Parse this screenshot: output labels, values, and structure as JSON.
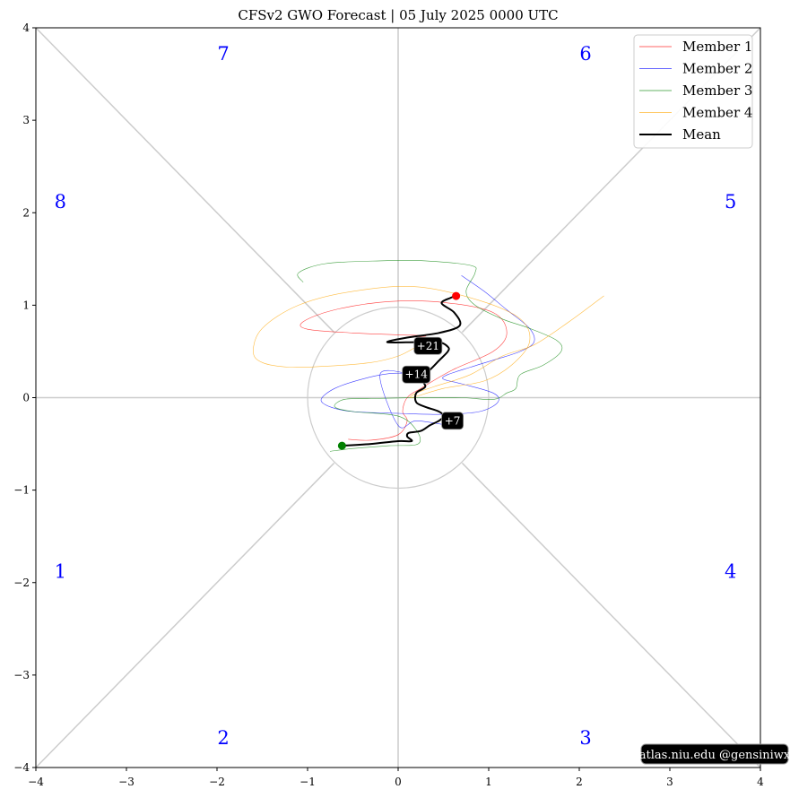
{
  "chart_data": {
    "type": "line",
    "title": "CFSv2 GWO Forecast   |   05  July  2025 0000 UTC",
    "xlim": [
      -4,
      4
    ],
    "ylim": [
      -4,
      4
    ],
    "x_ticks": [
      {
        "value": -4,
        "label": "−4"
      },
      {
        "value": -3,
        "label": "−3"
      },
      {
        "value": -2,
        "label": "−2"
      },
      {
        "value": -1,
        "label": "−1"
      },
      {
        "value": 0,
        "label": "0"
      },
      {
        "value": 1,
        "label": "1"
      },
      {
        "value": 2,
        "label": "2"
      },
      {
        "value": 3,
        "label": "3"
      },
      {
        "value": 4,
        "label": "4"
      }
    ],
    "y_ticks": [
      {
        "value": -4,
        "label": "−4"
      },
      {
        "value": -3,
        "label": "−3"
      },
      {
        "value": -2,
        "label": "−2"
      },
      {
        "value": -1,
        "label": "−1"
      },
      {
        "value": 0,
        "label": "0"
      },
      {
        "value": 1,
        "label": "1"
      },
      {
        "value": 2,
        "label": "2"
      },
      {
        "value": 3,
        "label": "3"
      },
      {
        "value": 4,
        "label": "4"
      }
    ],
    "phase_labels": [
      {
        "text": "7",
        "x": -1.93,
        "y": 3.65
      },
      {
        "text": "6",
        "x": 2.07,
        "y": 3.65
      },
      {
        "text": "8",
        "x": -3.73,
        "y": 2.05
      },
      {
        "text": "5",
        "x": 3.67,
        "y": 2.05
      },
      {
        "text": "1",
        "x": -3.73,
        "y": -1.95
      },
      {
        "text": "4",
        "x": 3.67,
        "y": -1.95
      },
      {
        "text": "2",
        "x": -1.93,
        "y": -3.75
      },
      {
        "text": "3",
        "x": 2.07,
        "y": -3.75
      }
    ],
    "unit_circle_radius": 1,
    "legend_position": "top-right",
    "series": [
      {
        "name": "Member 1",
        "color": "#ff0000",
        "width": 0.6,
        "points": [
          [
            -0.55,
            -0.45
          ],
          [
            -0.3,
            -0.46
          ],
          [
            0.0,
            -0.4
          ],
          [
            0.1,
            -0.25
          ],
          [
            0.05,
            -0.15
          ],
          [
            0.1,
            0.0
          ],
          [
            0.25,
            0.1
          ],
          [
            0.6,
            0.3
          ],
          [
            1.05,
            0.5
          ],
          [
            1.2,
            0.7
          ],
          [
            1.05,
            0.92
          ],
          [
            0.5,
            1.03
          ],
          [
            -0.1,
            1.04
          ],
          [
            -0.7,
            0.95
          ],
          [
            -1.05,
            0.82
          ],
          [
            -1.0,
            0.74
          ],
          [
            -0.5,
            0.7
          ],
          [
            0.0,
            0.68
          ],
          [
            0.3,
            0.67
          ],
          [
            0.2,
            0.65
          ]
        ]
      },
      {
        "name": "Member 2",
        "color": "#0000ff",
        "width": 0.6,
        "points": [
          [
            0.7,
            1.32
          ],
          [
            0.95,
            1.15
          ],
          [
            1.2,
            0.95
          ],
          [
            1.45,
            0.75
          ],
          [
            1.5,
            0.6
          ],
          [
            1.35,
            0.5
          ],
          [
            1.1,
            0.42
          ],
          [
            0.8,
            0.33
          ],
          [
            0.55,
            0.25
          ],
          [
            0.5,
            0.2
          ],
          [
            0.7,
            0.15
          ],
          [
            1.05,
            0.05
          ],
          [
            1.1,
            -0.05
          ],
          [
            0.9,
            -0.15
          ],
          [
            0.5,
            -0.18
          ],
          [
            0.0,
            -0.17
          ],
          [
            -0.5,
            -0.15
          ],
          [
            -0.75,
            -0.1
          ],
          [
            -0.85,
            -0.02
          ],
          [
            -0.7,
            0.1
          ],
          [
            -0.4,
            0.2
          ],
          [
            -0.1,
            0.26
          ],
          [
            0.1,
            0.26
          ],
          [
            -0.2,
            0.25
          ],
          [
            0.0,
            -0.3
          ],
          [
            0.2,
            -0.25
          ],
          [
            0.55,
            -0.3
          ]
        ]
      },
      {
        "name": "Member 3",
        "color": "#008000",
        "width": 0.6,
        "points": [
          [
            -1.05,
            1.25
          ],
          [
            -1.1,
            1.35
          ],
          [
            -0.8,
            1.45
          ],
          [
            -0.2,
            1.48
          ],
          [
            0.3,
            1.48
          ],
          [
            0.8,
            1.43
          ],
          [
            0.85,
            1.35
          ],
          [
            0.75,
            1.15
          ],
          [
            0.85,
            1.0
          ],
          [
            1.15,
            0.85
          ],
          [
            1.45,
            0.75
          ],
          [
            1.75,
            0.62
          ],
          [
            1.8,
            0.5
          ],
          [
            1.6,
            0.35
          ],
          [
            1.35,
            0.25
          ],
          [
            1.3,
            0.1
          ],
          [
            1.2,
            0.05
          ],
          [
            1.05,
            -0.02
          ],
          [
            0.7,
            0.0
          ],
          [
            0.2,
            0.0
          ],
          [
            -0.3,
            -0.01
          ],
          [
            -0.6,
            -0.02
          ],
          [
            -0.7,
            -0.1
          ],
          [
            -0.5,
            -0.15
          ],
          [
            0.0,
            -0.2
          ],
          [
            0.2,
            -0.35
          ],
          [
            0.22,
            -0.5
          ],
          [
            -0.1,
            -0.52
          ],
          [
            -0.5,
            -0.55
          ],
          [
            -0.75,
            -0.58
          ]
        ]
      },
      {
        "name": "Member 4",
        "color": "#ffa500",
        "width": 0.6,
        "points": [
          [
            2.27,
            1.1
          ],
          [
            1.9,
            0.83
          ],
          [
            1.5,
            0.57
          ],
          [
            1.15,
            0.45
          ],
          [
            0.8,
            0.25
          ],
          [
            0.4,
            0.12
          ],
          [
            0.2,
            0.05
          ],
          [
            0.15,
            0.0
          ],
          [
            0.5,
            0.1
          ],
          [
            0.95,
            0.18
          ],
          [
            1.25,
            0.35
          ],
          [
            1.45,
            0.6
          ],
          [
            1.35,
            0.85
          ],
          [
            0.9,
            1.05
          ],
          [
            0.2,
            1.2
          ],
          [
            -0.5,
            1.15
          ],
          [
            -1.1,
            1.0
          ],
          [
            -1.5,
            0.75
          ],
          [
            -1.6,
            0.5
          ],
          [
            -1.5,
            0.38
          ],
          [
            -1.2,
            0.33
          ],
          [
            -0.8,
            0.34
          ],
          [
            -0.3,
            0.38
          ],
          [
            0.0,
            0.45
          ],
          [
            0.2,
            0.55
          ]
        ]
      },
      {
        "name": "Mean",
        "color": "#000000",
        "width": 2,
        "points": [
          [
            -0.62,
            -0.52
          ],
          [
            -0.3,
            -0.5
          ],
          [
            0.0,
            -0.47
          ],
          [
            0.15,
            -0.47
          ],
          [
            0.1,
            -0.42
          ],
          [
            0.12,
            -0.38
          ],
          [
            0.25,
            -0.36
          ],
          [
            0.35,
            -0.3
          ],
          [
            0.45,
            -0.25
          ],
          [
            0.5,
            -0.2
          ],
          [
            0.45,
            -0.15
          ],
          [
            0.3,
            -0.1
          ],
          [
            0.2,
            -0.05
          ],
          [
            0.2,
            0.05
          ],
          [
            0.3,
            0.12
          ],
          [
            0.25,
            0.22
          ],
          [
            0.35,
            0.3
          ],
          [
            0.45,
            0.4
          ],
          [
            0.55,
            0.5
          ],
          [
            0.55,
            0.55
          ],
          [
            0.45,
            0.6
          ],
          [
            0.2,
            0.6
          ],
          [
            -0.12,
            0.6
          ],
          [
            0.1,
            0.65
          ],
          [
            0.45,
            0.7
          ],
          [
            0.68,
            0.78
          ],
          [
            0.62,
            0.92
          ],
          [
            0.48,
            1.02
          ],
          [
            0.58,
            1.08
          ],
          [
            0.64,
            1.1
          ]
        ]
      }
    ],
    "start_point": {
      "x": -0.62,
      "y": -0.52,
      "color": "#008000"
    },
    "end_point": {
      "x": 0.64,
      "y": 1.1,
      "color": "#ff0000"
    },
    "day_labels": [
      {
        "text": "+7",
        "x": 0.6,
        "y": -0.25
      },
      {
        "text": "+14",
        "x": 0.2,
        "y": 0.25
      },
      {
        "text": "+21",
        "x": 0.33,
        "y": 0.56
      }
    ],
    "credit": "atlas.niu.edu  @gensiniwx"
  }
}
